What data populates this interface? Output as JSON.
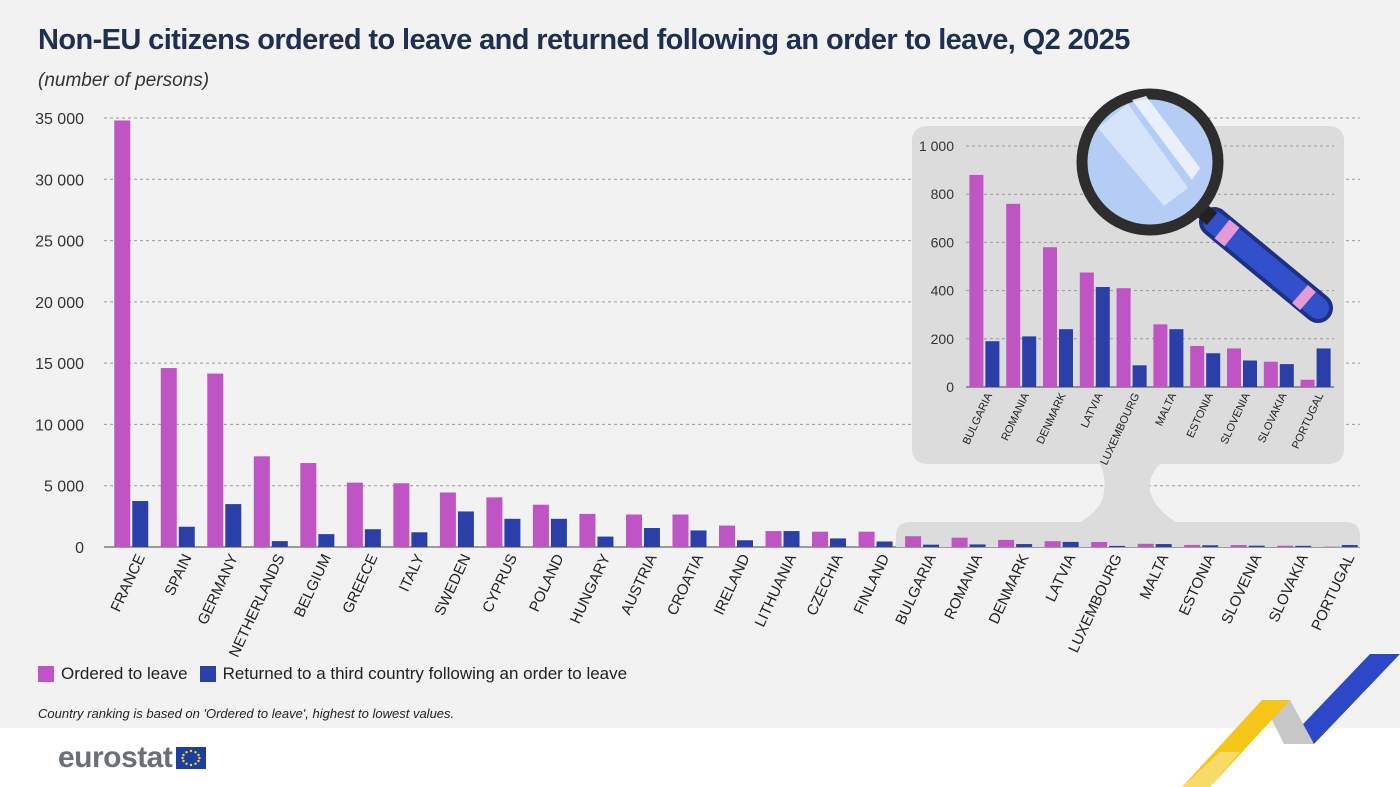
{
  "header": {
    "title": "Non-EU citizens ordered to leave and returned following an order to leave, Q2 2025",
    "subtitle": "(number of persons)"
  },
  "legend": {
    "ordered": "Ordered to leave",
    "returned": "Returned to a third country following an order to leave"
  },
  "note": "Country ranking is based on 'Ordered to leave', highest to lowest values.",
  "footer": {
    "logo": "eurostat"
  },
  "colors": {
    "ordered": "#bf55c4",
    "returned": "#2a3fa8",
    "title": "#1f2f4f",
    "inset_bg": "#dcdcdc"
  },
  "icons": {
    "magnifier": "magnifying-glass-icon",
    "flag": "eu-flag-icon"
  },
  "chart_data": [
    {
      "type": "bar",
      "categories": [
        "FRANCE",
        "SPAIN",
        "GERMANY",
        "NETHERLANDS",
        "BELGIUM",
        "GREECE",
        "ITALY",
        "SWEDEN",
        "CYPRUS",
        "POLAND",
        "HUNGARY",
        "AUSTRIA",
        "CROATIA",
        "IRELAND",
        "LITHUANIA",
        "CZECHIA",
        "FINLAND",
        "BULGARIA",
        "ROMANIA",
        "DENMARK",
        "LATVIA",
        "LUXEMBOURG",
        "MALTA",
        "ESTONIA",
        "SLOVENIA",
        "SLOVAKIA",
        "PORTUGAL"
      ],
      "series": [
        {
          "name": "Ordered to leave",
          "values": [
            34800,
            14600,
            14150,
            7400,
            6850,
            5250,
            5200,
            4450,
            4050,
            3450,
            2700,
            2650,
            2650,
            1750,
            1300,
            1250,
            1250,
            880,
            760,
            580,
            475,
            410,
            260,
            170,
            160,
            105,
            30
          ]
        },
        {
          "name": "Returned to a third country following an order to leave",
          "values": [
            3750,
            1650,
            3500,
            480,
            1050,
            1450,
            1200,
            2900,
            2300,
            2300,
            850,
            1550,
            1350,
            550,
            1300,
            700,
            450,
            190,
            210,
            240,
            415,
            90,
            240,
            140,
            110,
            95,
            160
          ]
        }
      ],
      "yticks": [
        "0",
        "5 000",
        "10 000",
        "15 000",
        "20 000",
        "25 000",
        "30 000",
        "35 000"
      ],
      "ylim": [
        0,
        35000
      ],
      "grid": true,
      "legend_position": "bottom"
    },
    {
      "type": "bar",
      "categories": [
        "BULGARIA",
        "ROMANIA",
        "DENMARK",
        "LATVIA",
        "LUXEMBOURG",
        "MALTA",
        "ESTONIA",
        "SLOVENIA",
        "SLOVAKIA",
        "PORTUGAL"
      ],
      "series": [
        {
          "name": "Ordered to leave",
          "values": [
            880,
            760,
            580,
            475,
            410,
            260,
            170,
            160,
            105,
            30
          ]
        },
        {
          "name": "Returned to a third country following an order to leave",
          "values": [
            190,
            210,
            240,
            415,
            90,
            240,
            140,
            110,
            95,
            160
          ]
        }
      ],
      "yticks": [
        "0",
        "200",
        "400",
        "600",
        "800",
        "1 000"
      ],
      "ylim": [
        0,
        1000
      ],
      "grid": true
    }
  ]
}
